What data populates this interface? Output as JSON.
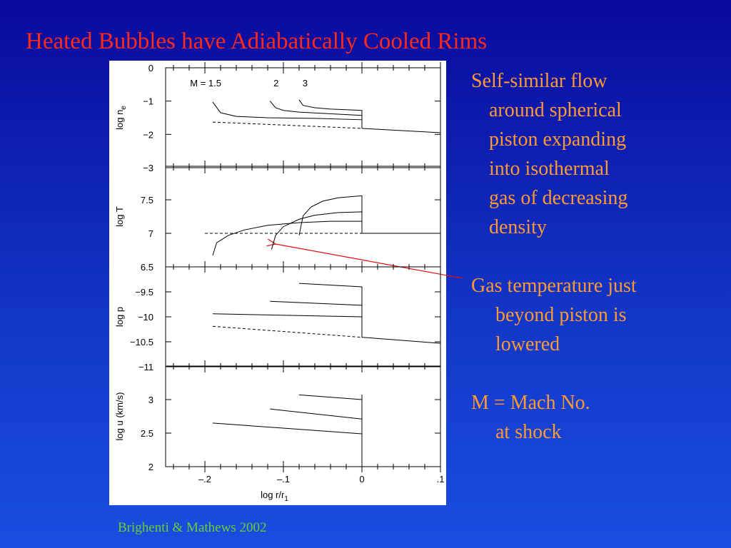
{
  "title": "Heated Bubbles have Adiabatically Cooled Rims",
  "text_blocks": [
    [
      "Self-similar flow",
      "around spherical",
      "piston expanding",
      "into isothermal",
      "gas of decreasing",
      "density"
    ],
    [
      "Gas temperature just",
      "beyond piston is",
      "lowered"
    ],
    [
      "M = Mach No.",
      "at shock"
    ]
  ],
  "credit": "Brighenti & Mathews 2002",
  "chart_data": [
    {
      "type": "line",
      "ylabel": "log n",
      "ylabel_sub": "e",
      "xlim": [
        -0.25,
        0.1
      ],
      "xticks": [
        -0.2,
        -0.1,
        0,
        0.1
      ],
      "xminorticks": [
        -0.24,
        -0.22,
        -0.18,
        -0.16,
        -0.14,
        -0.12,
        -0.08,
        -0.06,
        -0.04,
        -0.02,
        0.02,
        0.04,
        0.06,
        0.08
      ],
      "ylim": [
        -3,
        0
      ],
      "yticks": [
        0,
        {
          "value": -1,
          "label": "−1"
        },
        {
          "value": -2,
          "label": "−2"
        },
        {
          "value": -3,
          "label": "−3"
        }
      ],
      "series": [
        {
          "name": "M = 1.5",
          "color": "#000000",
          "x": [
            -0.19,
            -0.18,
            -0.16,
            -0.12,
            -0.06,
            0,
            0
          ],
          "values": [
            -1.03,
            -1.35,
            -1.46,
            -1.5,
            -1.52,
            -1.56,
            -1.82
          ]
        },
        {
          "name": "2",
          "color": "#000000",
          "x": [
            -0.117,
            -0.11,
            -0.1,
            -0.08,
            -0.05,
            0,
            0
          ],
          "values": [
            -1.0,
            -1.2,
            -1.28,
            -1.33,
            -1.37,
            -1.43,
            -1.82
          ]
        },
        {
          "name": "3",
          "color": "#000000",
          "x": [
            -0.08,
            -0.075,
            -0.06,
            -0.04,
            -0.02,
            0,
            0
          ],
          "values": [
            -0.96,
            -1.13,
            -1.2,
            -1.24,
            -1.26,
            -1.28,
            -1.82
          ]
        },
        {
          "color": "#000000",
          "x": [
            0,
            0.1
          ],
          "values": [
            -1.82,
            -1.95
          ]
        },
        {
          "color": "#000000",
          "dashed": true,
          "x": [
            -0.19,
            0
          ],
          "values": [
            -1.63,
            -1.82
          ]
        }
      ]
    },
    {
      "type": "line",
      "ylabel": "log T",
      "xlim": [
        -0.25,
        0.1
      ],
      "xticks": [
        -0.2,
        -0.1,
        0,
        0.1
      ],
      "xminorticks": [
        -0.24,
        -0.22,
        -0.18,
        -0.16,
        -0.14,
        -0.12,
        -0.08,
        -0.06,
        -0.04,
        -0.02,
        0.02,
        0.04,
        0.06,
        0.08
      ],
      "ylim": [
        6.5,
        8
      ],
      "yticks": [
        6.5,
        7,
        7.5
      ],
      "series": [
        {
          "color": "#000000",
          "x": [
            -0.19,
            -0.185,
            -0.17,
            -0.15,
            -0.12,
            -0.08,
            -0.04,
            0,
            0
          ],
          "values": [
            6.67,
            6.86,
            6.97,
            7.05,
            7.12,
            7.16,
            7.18,
            7.18,
            7
          ]
        },
        {
          "color": "#000000",
          "x": [
            -0.115,
            -0.11,
            -0.1,
            -0.08,
            -0.06,
            -0.03,
            0,
            0
          ],
          "values": [
            6.76,
            6.97,
            7.1,
            7.21,
            7.27,
            7.31,
            7.32,
            7
          ]
        },
        {
          "color": "#000000",
          "x": [
            -0.08,
            -0.075,
            -0.065,
            -0.05,
            -0.03,
            -0.01,
            0,
            0
          ],
          "values": [
            6.97,
            7.26,
            7.39,
            7.48,
            7.53,
            7.55,
            7.56,
            7
          ]
        },
        {
          "color": "#000000",
          "x": [
            0,
            0.1
          ],
          "values": [
            7,
            7
          ]
        },
        {
          "color": "#000000",
          "dashed": true,
          "x": [
            -0.2,
            0
          ],
          "values": [
            7,
            7
          ]
        }
      ]
    },
    {
      "type": "line",
      "ylabel": "log p",
      "xlim": [
        -0.25,
        0.1
      ],
      "xticks": [
        -0.2,
        -0.1,
        0,
        0.1
      ],
      "xminorticks": [
        -0.24,
        -0.22,
        -0.18,
        -0.16,
        -0.14,
        -0.12,
        -0.08,
        -0.06,
        -0.04,
        -0.02,
        0.02,
        0.04,
        0.06,
        0.08
      ],
      "ylim": [
        -11,
        -9
      ],
      "yticks": [
        {
          "value": -9.5,
          "label": "−9.5"
        },
        {
          "value": -10,
          "label": "−10"
        },
        {
          "value": -10.5,
          "label": "−10.5"
        },
        {
          "value": -11,
          "label": "−11"
        }
      ],
      "series": [
        {
          "color": "#000000",
          "x": [
            -0.19,
            0,
            0
          ],
          "values": [
            -9.94,
            -10.0,
            -10.41
          ]
        },
        {
          "color": "#000000",
          "x": [
            -0.117,
            0,
            0
          ],
          "values": [
            -9.69,
            -9.77,
            -10.41
          ]
        },
        {
          "color": "#000000",
          "x": [
            -0.08,
            0,
            0
          ],
          "values": [
            -9.33,
            -9.4,
            -10.41
          ]
        },
        {
          "color": "#000000",
          "x": [
            0,
            0.1
          ],
          "values": [
            -10.41,
            -10.53
          ]
        },
        {
          "color": "#000000",
          "dashed": true,
          "x": [
            -0.19,
            0
          ],
          "values": [
            -10.19,
            -10.41
          ]
        }
      ]
    },
    {
      "type": "line",
      "ylabel": "log u (km/s)",
      "xlabel": "log r/r",
      "xlabel_sub": "1",
      "xlim": [
        -0.25,
        0.1
      ],
      "xticks": [
        {
          "value": -0.2,
          "label": "–.2"
        },
        {
          "value": -0.1,
          "label": "–.1"
        },
        0,
        {
          "value": 0.1,
          "label": ".1"
        }
      ],
      "xminorticks": [
        -0.24,
        -0.22,
        -0.18,
        -0.16,
        -0.14,
        -0.12,
        -0.08,
        -0.06,
        -0.04,
        -0.02,
        0.02,
        0.04,
        0.06,
        0.08
      ],
      "ylim": [
        2,
        3.5
      ],
      "yticks": [
        2,
        2.5,
        3
      ],
      "series": [
        {
          "color": "#000000",
          "x": [
            -0.19,
            0
          ],
          "values": [
            2.65,
            2.49
          ]
        },
        {
          "color": "#000000",
          "x": [
            -0.117,
            0
          ],
          "values": [
            2.86,
            2.71
          ]
        },
        {
          "color": "#000000",
          "x": [
            -0.08,
            0
          ],
          "values": [
            3.07,
            3.0
          ]
        }
      ]
    }
  ]
}
